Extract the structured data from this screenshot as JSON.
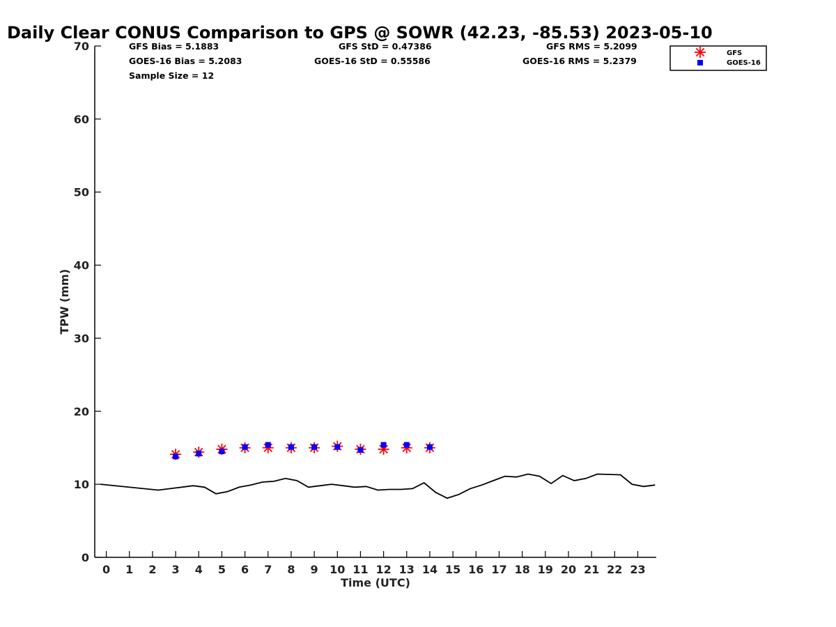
{
  "chart_data": {
    "type": "scatter",
    "title": "Daily Clear CONUS Comparison to GPS @ SOWR (42.23, -85.53) 2023-05-10",
    "xlabel": "Time (UTC)",
    "ylabel": "TPW (mm)",
    "xlim": [
      -0.5,
      23.8
    ],
    "ylim": [
      0,
      70
    ],
    "x_ticks": [
      "0",
      "1",
      "2",
      "3",
      "4",
      "5",
      "6",
      "7",
      "8",
      "9",
      "10",
      "11",
      "12",
      "13",
      "14",
      "15",
      "16",
      "17",
      "18",
      "19",
      "20",
      "21",
      "22",
      "23"
    ],
    "y_ticks": [
      "0",
      "10",
      "20",
      "30",
      "40",
      "50",
      "60",
      "70"
    ],
    "grid": false,
    "legend_position": "top-right",
    "stats": {
      "gfs_bias": "GFS Bias = 5.1883",
      "goes_bias": "GOES-16 Bias = 5.2083",
      "sample_size": "Sample Size = 12",
      "gfs_std": "GFS StD = 0.47386",
      "goes_std": "GOES-16 StD = 0.55586",
      "gfs_rms": "GFS RMS = 5.2099",
      "goes_rms": "GOES-16 RMS = 5.2379"
    },
    "series": [
      {
        "name": "GFS",
        "marker": "asterisk",
        "color": "#ff0000",
        "x": [
          3,
          4,
          5,
          6,
          7,
          8,
          9,
          10,
          11,
          12,
          13,
          14
        ],
        "y": [
          14.1,
          14.4,
          14.8,
          15.0,
          15.0,
          15.0,
          15.0,
          15.2,
          14.8,
          14.8,
          15.0,
          15.0
        ]
      },
      {
        "name": "GOES-16",
        "marker": "square",
        "color": "#0000ff",
        "x": [
          3,
          4,
          5,
          6,
          7,
          8,
          9,
          10,
          11,
          12,
          13,
          14
        ],
        "y": [
          13.8,
          14.2,
          14.5,
          15.1,
          15.4,
          15.1,
          15.1,
          15.1,
          14.7,
          15.4,
          15.4,
          15.1
        ]
      },
      {
        "marker": "line",
        "color": "#000000",
        "x": [
          -0.25,
          2.25,
          3.0,
          3.75,
          4.25,
          4.75,
          5.25,
          5.75,
          6.25,
          6.75,
          7.25,
          7.75,
          8.25,
          8.75,
          9.25,
          9.75,
          10.25,
          10.75,
          11.25,
          11.75,
          12.25,
          12.75,
          13.25,
          13.75,
          14.25,
          14.75,
          15.25,
          15.75,
          16.25,
          16.75,
          17.25,
          17.75,
          18.25,
          18.75,
          19.25,
          19.75,
          20.25,
          20.75,
          21.25,
          22.25,
          22.75,
          23.25,
          23.75
        ],
        "y": [
          10.0,
          9.2,
          9.5,
          9.8,
          9.6,
          8.7,
          9.0,
          9.6,
          9.9,
          10.3,
          10.4,
          10.8,
          10.5,
          9.6,
          9.8,
          10.0,
          9.8,
          9.6,
          9.7,
          9.2,
          9.3,
          9.3,
          9.4,
          10.2,
          8.9,
          8.1,
          8.6,
          9.4,
          9.9,
          10.5,
          11.1,
          11.0,
          11.4,
          11.1,
          10.1,
          11.2,
          10.5,
          10.8,
          11.4,
          11.3,
          10.0,
          9.7,
          9.9
        ]
      }
    ]
  }
}
